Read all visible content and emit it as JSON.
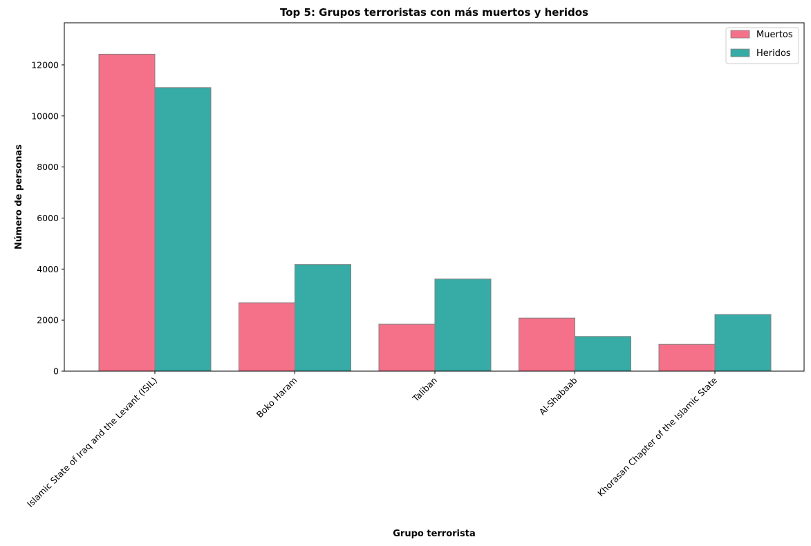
{
  "chart_data": {
    "type": "bar",
    "title": "Top 5: Grupos terroristas con más muertos y heridos",
    "xlabel": "Grupo terrorista",
    "ylabel": "Número de personas",
    "categories": [
      "Islamic State of Iraq and the Levant (ISIL)",
      "Boko Haram",
      "Taliban",
      "Al-Shabaab",
      "Khorasan Chapter of the Islamic State"
    ],
    "series": [
      {
        "name": "Muertos",
        "color": "#f5718a",
        "values": [
          12420,
          2680,
          1840,
          2080,
          1050
        ]
      },
      {
        "name": "Heridos",
        "color": "#37aba5",
        "values": [
          11110,
          4180,
          3610,
          1360,
          2220
        ]
      }
    ],
    "ylim": [
      0,
      13650
    ],
    "yticks": [
      0,
      2000,
      4000,
      6000,
      8000,
      10000,
      12000
    ],
    "grid": false,
    "legend_position": "top-right"
  }
}
